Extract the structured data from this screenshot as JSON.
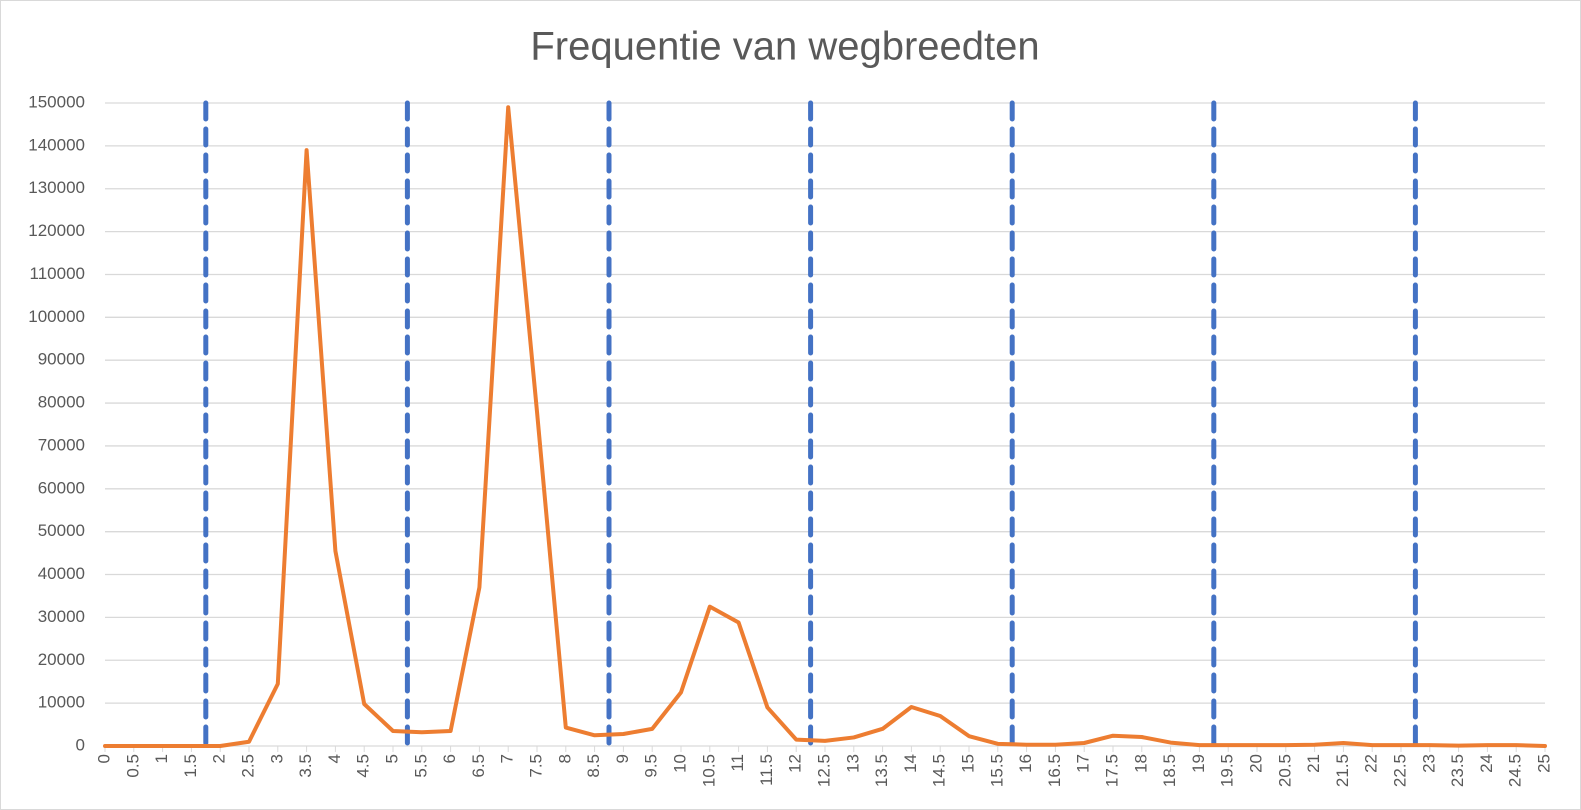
{
  "chart_data": {
    "type": "line",
    "title": "Frequentie van wegbreedten",
    "x": [
      0,
      0.5,
      1,
      1.5,
      2,
      2.5,
      3,
      3.5,
      4,
      4.5,
      5,
      5.5,
      6,
      6.5,
      7,
      7.5,
      8,
      8.5,
      9,
      9.5,
      10,
      10.5,
      11,
      11.5,
      12,
      12.5,
      13,
      13.5,
      14,
      14.5,
      15,
      15.5,
      16,
      16.5,
      17,
      17.5,
      18,
      18.5,
      19,
      19.5,
      20,
      20.5,
      21,
      21.5,
      22,
      22.5,
      23,
      23.5,
      24,
      24.5,
      25
    ],
    "values": [
      0,
      0,
      0,
      0,
      0,
      1000,
      14500,
      139000,
      45500,
      9800,
      3500,
      3200,
      3500,
      37000,
      149000,
      78000,
      4300,
      2500,
      2800,
      4000,
      12500,
      32500,
      28800,
      9000,
      1500,
      1200,
      2000,
      4000,
      9100,
      7000,
      2300,
      500,
      300,
      300,
      700,
      2400,
      2100,
      800,
      200,
      200,
      200,
      200,
      300,
      700,
      200,
      200,
      200,
      100,
      200,
      200,
      0
    ],
    "color": "#ed7d31",
    "xlim": [
      0,
      25
    ],
    "xticks": [
      0,
      0.5,
      1,
      1.5,
      2,
      2.5,
      3,
      3.5,
      4,
      4.5,
      5,
      5.5,
      6,
      6.5,
      7,
      7.5,
      8,
      8.5,
      9,
      9.5,
      10,
      10.5,
      11,
      11.5,
      12,
      12.5,
      13,
      13.5,
      14,
      14.5,
      15,
      15.5,
      16,
      16.5,
      17,
      17.5,
      18,
      18.5,
      19,
      19.5,
      20,
      20.5,
      21,
      21.5,
      22,
      22.5,
      23,
      23.5,
      24,
      24.5,
      25
    ],
    "ylim": [
      0,
      150000
    ],
    "yticks": [
      0,
      10000,
      20000,
      30000,
      40000,
      50000,
      60000,
      70000,
      80000,
      90000,
      100000,
      110000,
      120000,
      130000,
      140000,
      150000
    ],
    "grid": true,
    "reference_lines": {
      "x": [
        1.75,
        5.25,
        8.75,
        12.25,
        15.75,
        19.25,
        22.75
      ],
      "color": "#4472c4",
      "style": "dashed"
    }
  }
}
